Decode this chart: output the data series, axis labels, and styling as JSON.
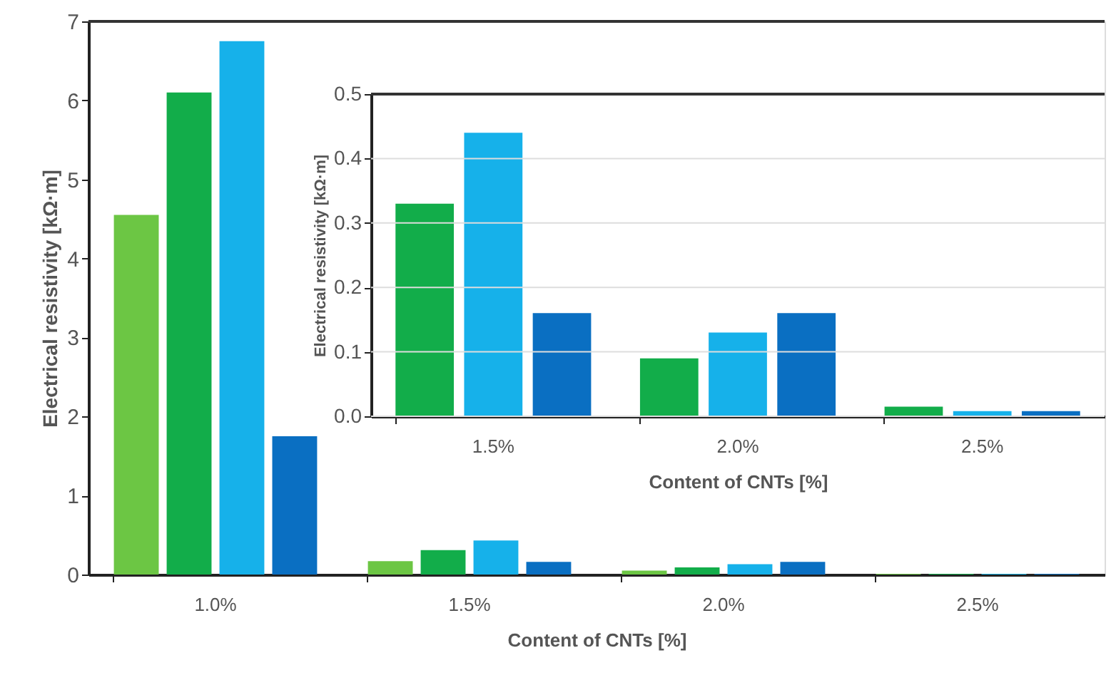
{
  "chart_data": [
    {
      "type": "bar",
      "xlabel": "Content of CNTs [%]",
      "ylabel": "Electrical resistivity [kΩ·m]",
      "categories": [
        "1.0%",
        "1.5%",
        "2.0%",
        "2.5%"
      ],
      "series": [
        {
          "color": "#6cc644",
          "values": [
            4.55,
            0.17,
            0.05,
            0.01
          ]
        },
        {
          "color": "#12ad4a",
          "values": [
            6.1,
            0.31,
            0.09,
            0.01
          ]
        },
        {
          "color": "#16b1ea",
          "values": [
            6.75,
            0.43,
            0.13,
            0.01
          ]
        },
        {
          "color": "#0a6fc2",
          "values": [
            1.75,
            0.16,
            0.16,
            0.01
          ]
        }
      ],
      "ylim": [
        0,
        7
      ],
      "yticks": [
        0,
        1,
        2,
        3,
        4,
        5,
        6,
        7
      ],
      "grid": false
    },
    {
      "type": "bar",
      "xlabel": "Content of CNTs [%]",
      "ylabel": "Electrical resistivity [kΩ·m]",
      "categories": [
        "1.5%",
        "2.0%",
        "2.5%"
      ],
      "series": [
        {
          "color": "#12ad4a",
          "values": [
            0.33,
            0.09,
            0.015
          ]
        },
        {
          "color": "#16b1ea",
          "values": [
            0.44,
            0.13,
            0.008
          ]
        },
        {
          "color": "#0a6fc2",
          "values": [
            0.16,
            0.16,
            0.008
          ]
        }
      ],
      "ylim": [
        0,
        0.5
      ],
      "yticks": [
        {
          "value": 0,
          "label": "0.0"
        },
        0.1,
        0.2,
        0.3,
        0.4,
        0.5
      ],
      "grid": "y"
    }
  ]
}
